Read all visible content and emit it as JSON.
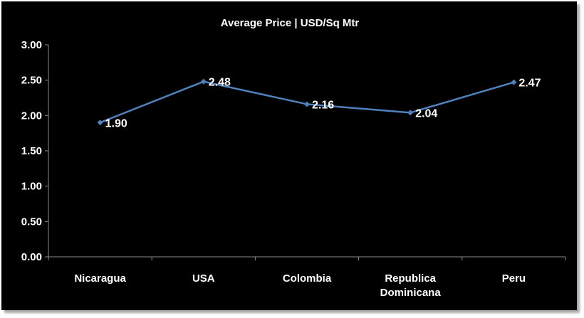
{
  "chart_data": {
    "type": "line",
    "title": "Average Price | USD/Sq Mtr",
    "xlabel": "",
    "ylabel": "",
    "categories": [
      [
        "Nicaragua"
      ],
      [
        "USA"
      ],
      [
        "Colombia"
      ],
      [
        "Republica",
        "Dominicana"
      ],
      [
        "Peru"
      ]
    ],
    "series": [
      {
        "values": [
          1.9,
          2.48,
          2.16,
          2.04,
          2.47
        ]
      }
    ],
    "data_labels": [
      "1.90",
      "2.48",
      "2.16",
      "2.04",
      "2.47"
    ],
    "y_ticks": [
      "0.00",
      "0.50",
      "1.00",
      "1.50",
      "2.00",
      "2.50",
      "3.00"
    ],
    "ylim": [
      0,
      3
    ],
    "grid": false,
    "legend": "none",
    "colors": {
      "background": "#000000",
      "line": "#4f81bd",
      "text": "#ffffff",
      "axis": "#8c8c8c"
    }
  }
}
